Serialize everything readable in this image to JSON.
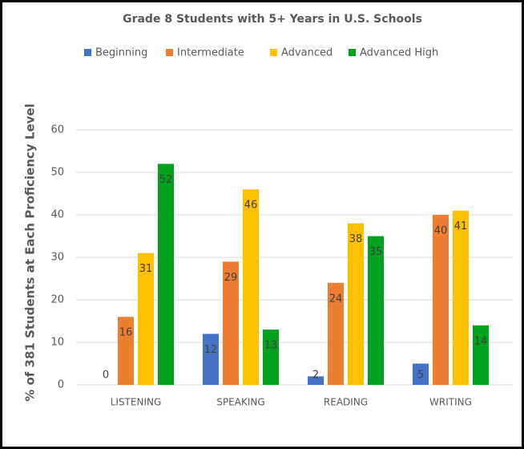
{
  "chart_data": {
    "type": "bar",
    "title": "Grade 8 Students with 5+ Years in U.S. Schools",
    "y_label": "% of 381 Students at Each Proficiency Level",
    "categories": [
      "LISTENING",
      "SPEAKING",
      "READING",
      "WRITING"
    ],
    "series": [
      {
        "name": "Beginning",
        "color": "#4472c4",
        "values": [
          0,
          12,
          2,
          5
        ]
      },
      {
        "name": "Intermediate",
        "color": "#ed7d31",
        "values": [
          16,
          29,
          24,
          40
        ]
      },
      {
        "name": "Advanced",
        "color": "#ffc000",
        "values": [
          31,
          46,
          38,
          41
        ]
      },
      {
        "name": "Advanced High",
        "color": "#00a21e",
        "values": [
          52,
          13,
          35,
          14
        ]
      }
    ],
    "ylim": [
      0,
      60
    ],
    "yticks": [
      0,
      10,
      20,
      30,
      40,
      50,
      60
    ],
    "grid": true,
    "legend": "top"
  }
}
